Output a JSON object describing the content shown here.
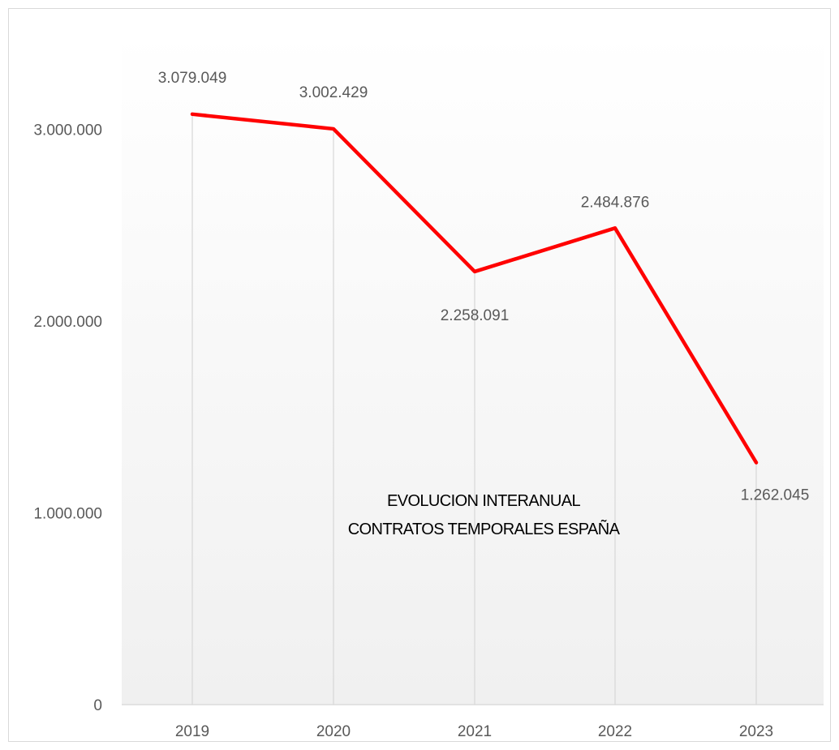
{
  "chart_data": {
    "type": "line",
    "title": "",
    "xlabel": "",
    "ylabel": "",
    "categories": [
      "2019",
      "2020",
      "2021",
      "2022",
      "2023"
    ],
    "series": [
      {
        "values": [
          3079049,
          3002429,
          2258091,
          2484876,
          1262045
        ],
        "color": "#ff0000"
      }
    ],
    "data_labels": [
      "3.079.049",
      "3.002.429",
      "2.258.091",
      "2.484.876",
      "1.262.045"
    ],
    "y_ticks": [
      0,
      1000000,
      2000000,
      3000000
    ],
    "y_tick_labels": [
      "0",
      "1.000.000",
      "2.000.000",
      "3.000.000"
    ],
    "ylim": [
      0,
      3000000
    ],
    "grid": "vertical",
    "legend": "none",
    "annotation": {
      "line1": "EVOLUCION INTERANUAL",
      "line2": "CONTRATOS TEMPORALES ESPAÑA"
    },
    "colors": {
      "line": "#ff0000",
      "gridline": "#d9d9d9",
      "axis": "#d9d9d9",
      "text": "#595959"
    }
  }
}
